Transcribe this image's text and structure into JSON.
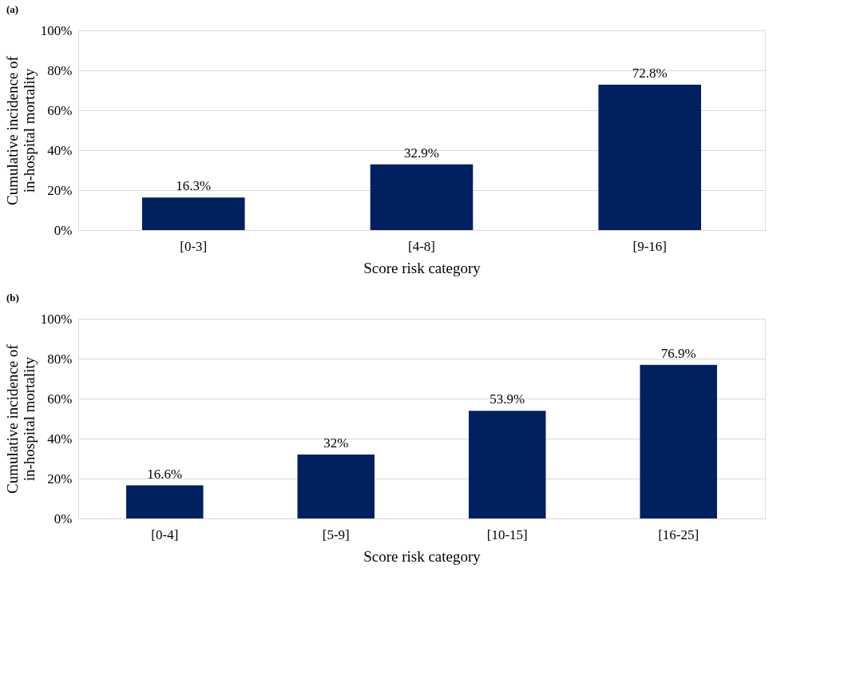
{
  "chart_data": [
    {
      "type": "bar",
      "title": "(a)",
      "xlabel": "Score risk category",
      "ylabel": "Cumulative incidence of in-hospital mortality",
      "categories": [
        "[0-3]",
        "[4-8]",
        "[9-16]"
      ],
      "values": [
        16.3,
        32.9,
        72.8
      ],
      "value_labels": [
        "16.3%",
        "32.9%",
        "72.8%"
      ],
      "color": "#002060",
      "ylim": [
        0,
        100
      ],
      "yticks": [
        {
          "value": 0,
          "label": "0%"
        },
        {
          "value": 20,
          "label": "20%"
        },
        {
          "value": 40,
          "label": "40%"
        },
        {
          "value": 60,
          "label": "60%"
        },
        {
          "value": 80,
          "label": "80%"
        },
        {
          "value": 100,
          "label": "100%"
        }
      ],
      "grid": "y"
    },
    {
      "type": "bar",
      "title": "(b)",
      "xlabel": "Score risk category",
      "ylabel": "Cumulative incidence of in-hospital mortality",
      "categories": [
        "[0-4]",
        "[5-9]",
        "[10-15]",
        "[16-25]"
      ],
      "values": [
        16.6,
        32,
        53.9,
        76.9
      ],
      "value_labels": [
        "16.6%",
        "32%",
        "53.9%",
        "76.9%"
      ],
      "color": "#002060",
      "ylim": [
        0,
        100
      ],
      "yticks": [
        {
          "value": 0,
          "label": "0%"
        },
        {
          "value": 20,
          "label": "20%"
        },
        {
          "value": 40,
          "label": "40%"
        },
        {
          "value": 60,
          "label": "60%"
        },
        {
          "value": 80,
          "label": "80%"
        },
        {
          "value": 100,
          "label": "100%"
        }
      ],
      "grid": "y"
    }
  ]
}
